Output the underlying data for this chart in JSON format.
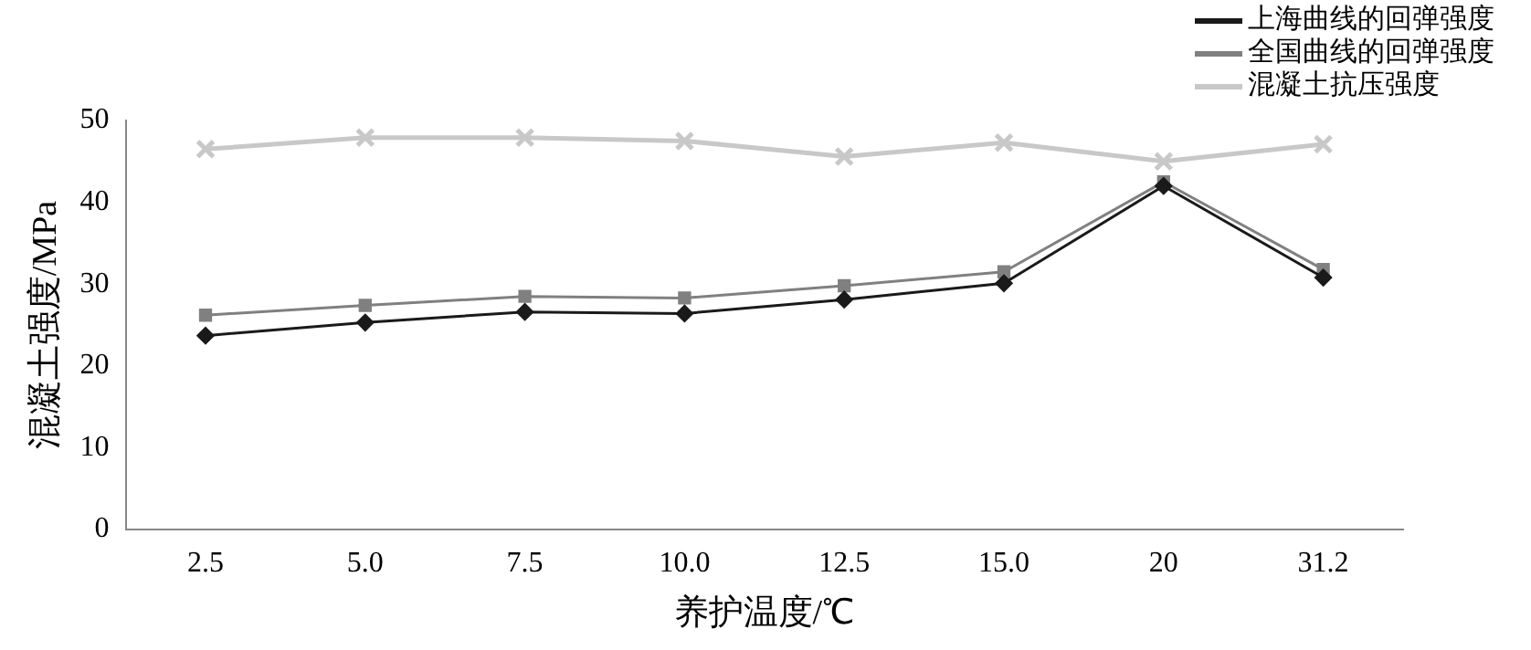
{
  "chart_data": {
    "type": "line",
    "xlabel": "养护温度/℃",
    "ylabel": "混凝土强度/MPa",
    "categories": [
      "2.5",
      "5.0",
      "7.5",
      "10.0",
      "12.5",
      "15.0",
      "20",
      "31.2"
    ],
    "ylim": [
      0,
      50
    ],
    "yticks": [
      0,
      10,
      20,
      30,
      40,
      50
    ],
    "grid": false,
    "legend": "top right",
    "series": [
      {
        "name": "上海曲线的回弹强度",
        "color": "#1a1a1a",
        "marker": "diamond",
        "values": [
          23.7,
          25.3,
          26.6,
          26.4,
          28.1,
          30.1,
          42.0,
          30.8
        ]
      },
      {
        "name": "全国曲线的回弹强度",
        "color": "#808080",
        "marker": "square",
        "values": [
          26.2,
          27.4,
          28.5,
          28.3,
          29.8,
          31.5,
          42.5,
          31.8
        ]
      },
      {
        "name": "混凝土抗压强度",
        "color": "#c8c8c8",
        "marker": "cross",
        "values": [
          46.5,
          47.9,
          47.9,
          47.5,
          45.6,
          47.3,
          45.0,
          47.1
        ]
      }
    ]
  }
}
